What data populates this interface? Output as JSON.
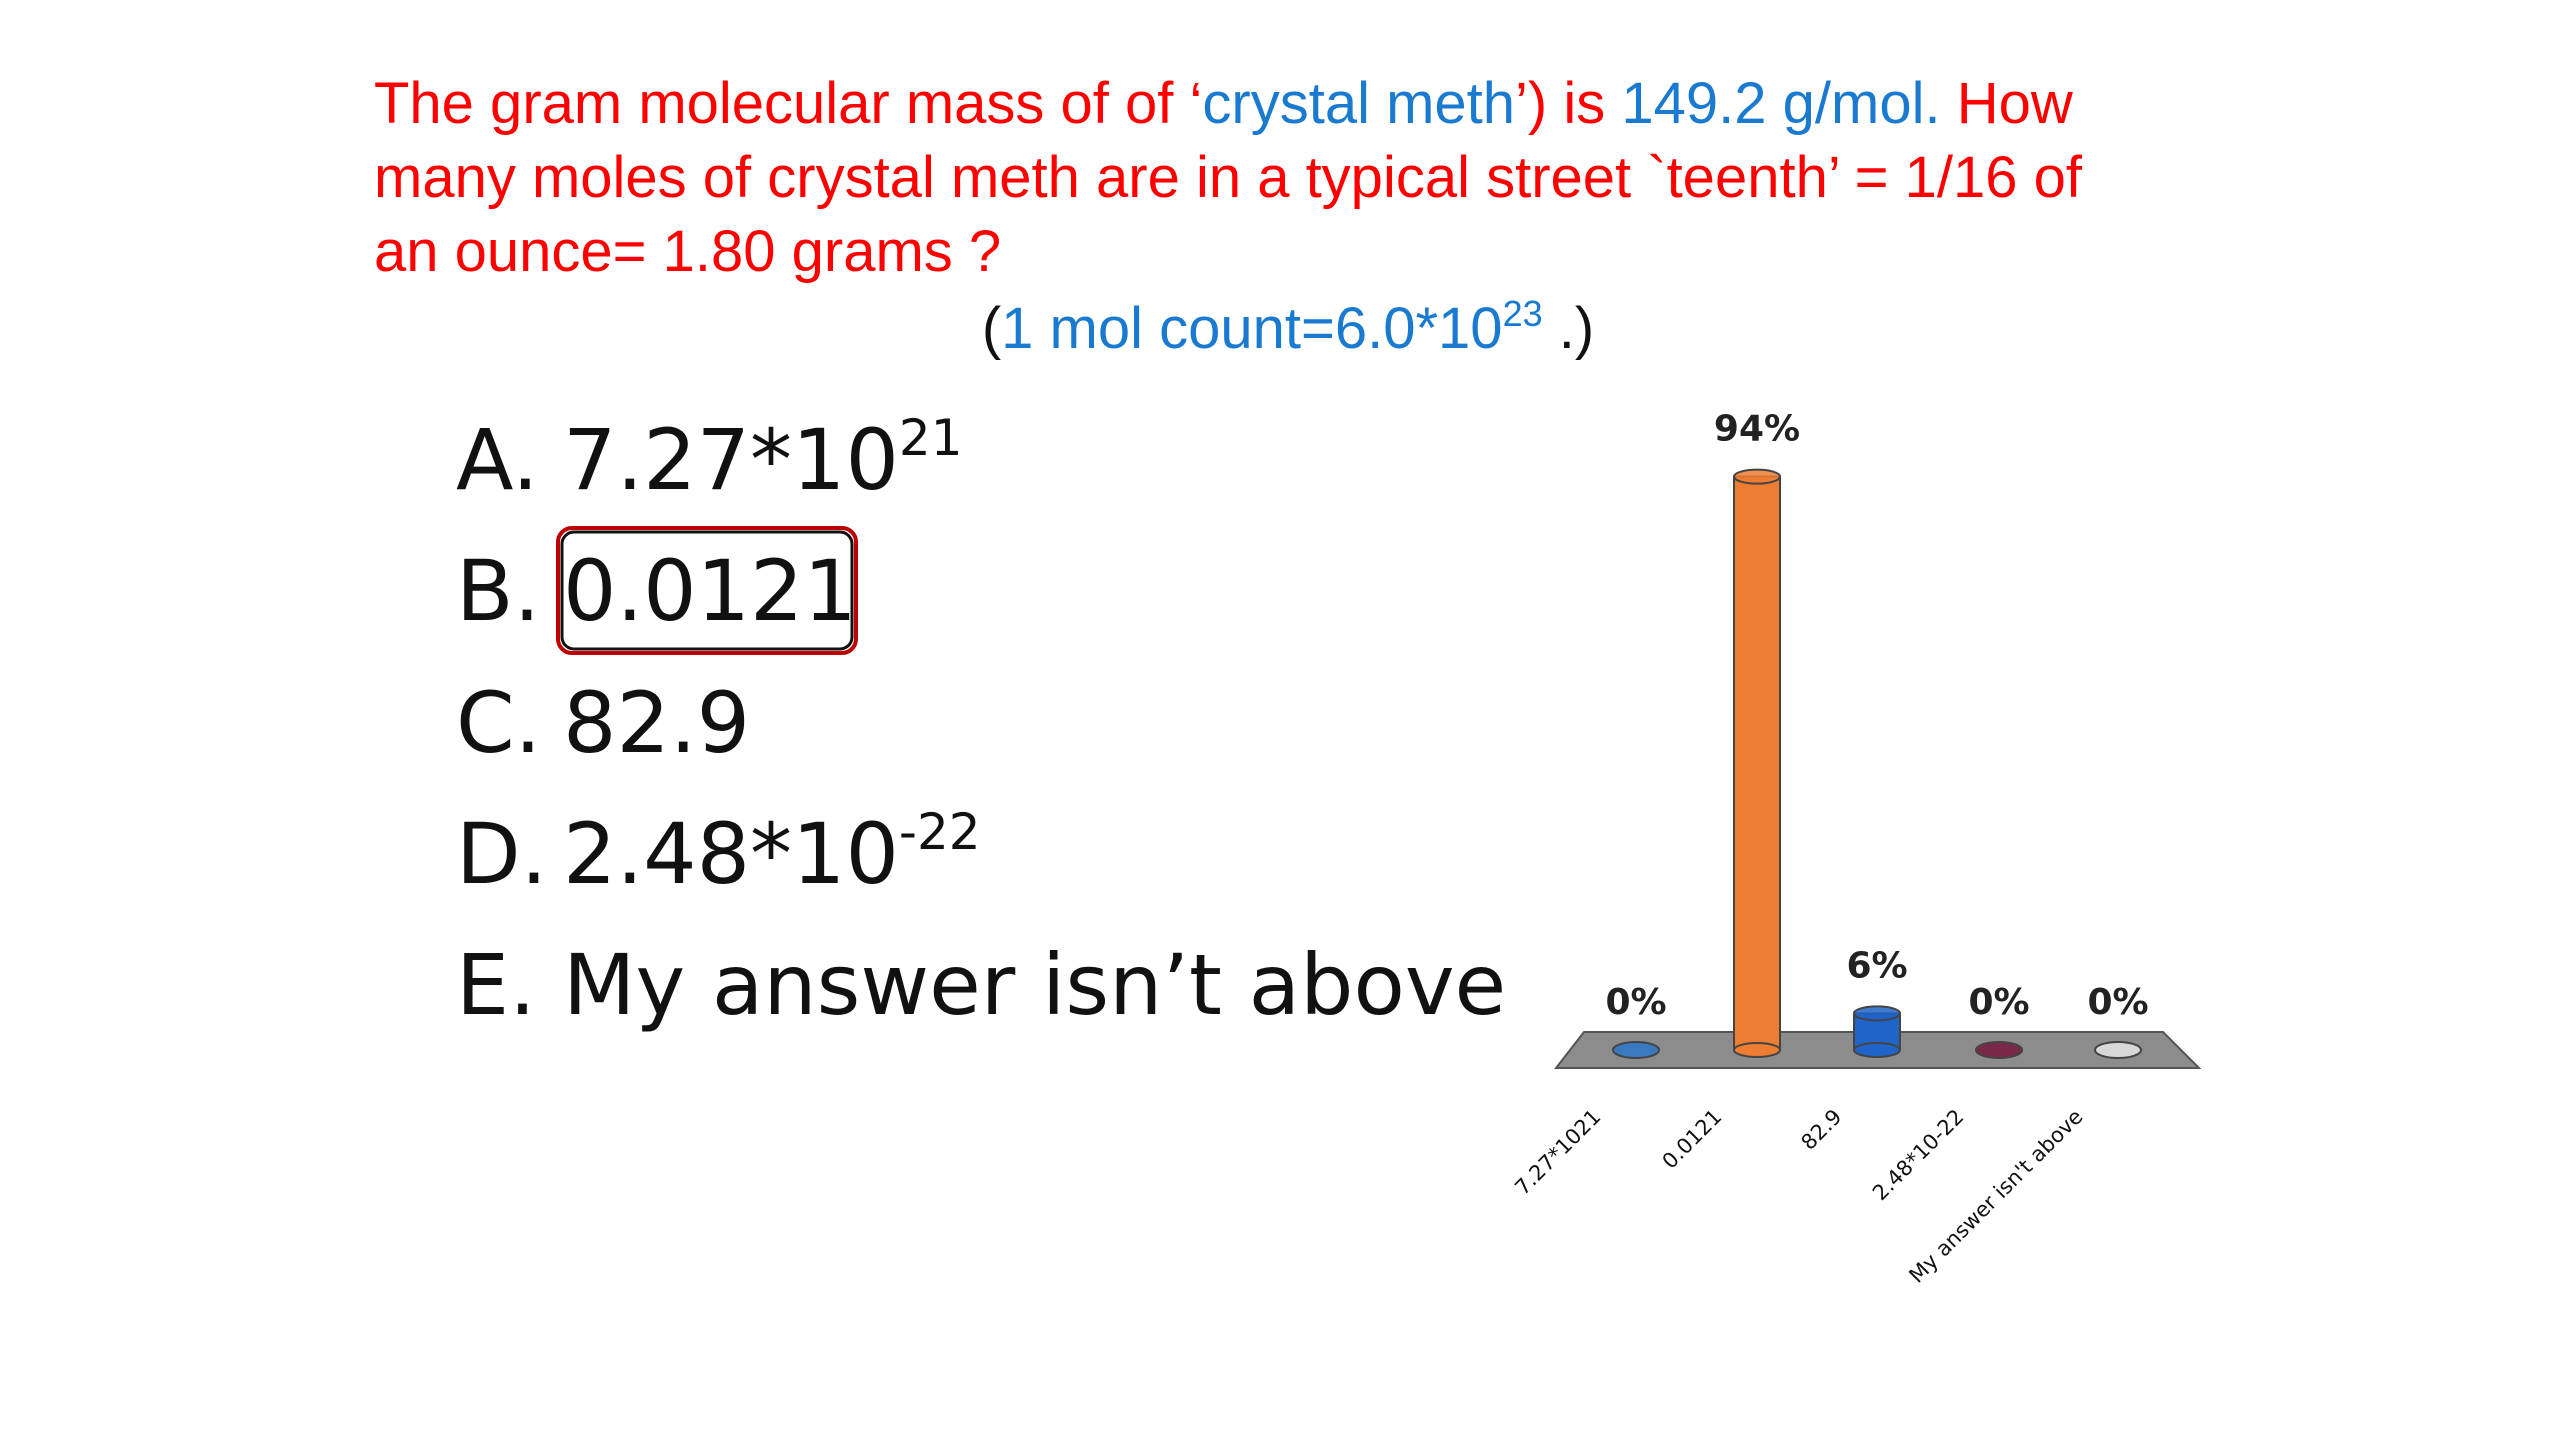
{
  "question": {
    "lines": [
      [
        {
          "text": "The  gram molecular mass of of ‘",
          "color": "#ff0000"
        },
        {
          "text": "crystal meth",
          "color": "#1a7ad0"
        },
        {
          "text": "’)  is ",
          "color": "#ff0000"
        },
        {
          "text": "149.2 g/mol.",
          "color": "#1a7ad0"
        },
        {
          "text": " How",
          "color": "#ff0000"
        }
      ],
      [
        {
          "text": "many moles of crystal meth are in a typical street `teenth’ = 1/16 of",
          "color": "#ff0000"
        }
      ],
      [
        {
          "text": "an ounce= 1.80 grams ?",
          "color": "#ff0000"
        }
      ]
    ],
    "note": [
      {
        "text": "(",
        "color": "#111111"
      },
      {
        "text": "1 mol count=6.0*10",
        "color": "#1a7ad0"
      },
      {
        "text": "23",
        "color": "#1a7ad0",
        "sup": true
      },
      {
        "text": " .)",
        "color": "#111111"
      }
    ]
  },
  "options": [
    {
      "letter": "A.",
      "text": "7.27*10",
      "sup": "21"
    },
    {
      "letter": "B.",
      "text": "0.0121",
      "boxed": true
    },
    {
      "letter": "C.",
      "text": "82.9"
    },
    {
      "letter": "D.",
      "text": "2.48*10",
      "sup": "-22"
    },
    {
      "letter": "E.",
      "text": "My answer isn’t above"
    }
  ],
  "chart_data": {
    "type": "bar3d",
    "categories": [
      "7.27*1021",
      "0.0121",
      "82.9",
      "2.48*10-22",
      "My answer isn't above"
    ],
    "values": [
      0,
      94,
      6,
      0,
      0
    ],
    "value_labels": [
      "0%",
      "94%",
      "6%",
      "0%",
      "0%"
    ],
    "colors": [
      "#3a78c0",
      "#ed7d31",
      "#1f64c8",
      "#7a2848",
      "#d8d8d8"
    ]
  }
}
